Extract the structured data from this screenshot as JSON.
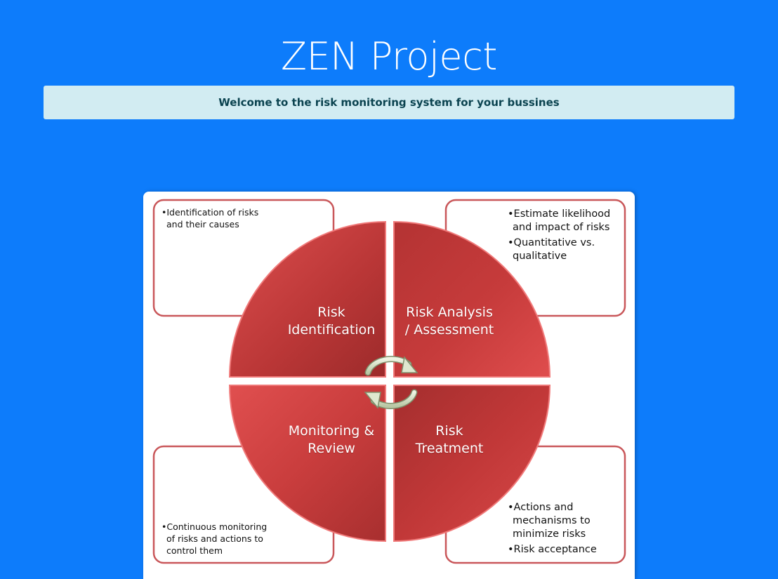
{
  "page": {
    "title": "ZEN Project",
    "welcome": "Welcome to the risk monitoring system for your bussines"
  },
  "diagram": {
    "quadrants": {
      "top_left": [
        "Risk",
        "Identification"
      ],
      "top_right": [
        "Risk Analysis",
        "/ Assessment"
      ],
      "bottom_left": [
        "Monitoring &",
        "Review"
      ],
      "bottom_right": [
        "Risk",
        "Treatment"
      ]
    },
    "notes": {
      "top_left": [
        "•Identification  of risks",
        "and their causes"
      ],
      "top_right": [
        "•Estimate likelihood",
        "and impact of risks",
        "•Quantitative vs.",
        "qualitative"
      ],
      "bottom_left": [
        "•Continuous  monitoring",
        "of risks and actions to",
        "control them"
      ],
      "bottom_right": [
        "•Actions and",
        "mechanisms to",
        "minimize risks",
        "•Risk acceptance"
      ]
    },
    "icons": [
      "cycle-arrows-icon"
    ],
    "colors": {
      "page_background": "#0d7cfb",
      "banner_background": "#d2ecf2",
      "banner_text": "#0b4350",
      "quadrant_red": "#c73a3a",
      "box_border": "#c9575a"
    }
  }
}
